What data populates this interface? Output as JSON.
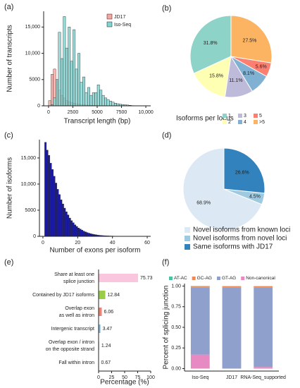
{
  "chart_data": [
    {
      "panel": "(a)",
      "type": "histogram",
      "xlabel": "Transcript length (bp)",
      "ylabel": "Number of transcripts",
      "bins": [
        0,
        250,
        500,
        750,
        1000,
        1250,
        1500,
        1750,
        2000,
        2250,
        2500,
        2750,
        3000,
        3250,
        3500,
        3750,
        4000,
        4250,
        4500,
        4750,
        5000,
        5250,
        5500,
        5750,
        6000,
        6250,
        6500,
        6750,
        7000,
        7250,
        7500,
        7750,
        8000,
        8250,
        8500,
        8750,
        9000,
        9250,
        9500,
        9750,
        10000
      ],
      "series": [
        {
          "name": "JD17",
          "color": "#f4a6a0",
          "values": [
            1000,
            6000,
            7000,
            5000,
            3000,
            2000,
            1500,
            1000,
            800,
            600,
            500,
            400,
            300,
            250,
            200,
            150,
            120,
            100,
            80,
            60,
            50,
            40,
            30,
            20,
            10,
            10,
            5,
            5,
            0,
            0,
            0,
            0,
            0,
            0,
            0,
            0,
            0,
            0,
            0,
            0
          ]
        },
        {
          "name": "Iso-Seq",
          "color": "#7fd3d0",
          "values": [
            0,
            200,
            1500,
            5000,
            14000,
            9000,
            17000,
            11000,
            15000,
            8500,
            14500,
            7000,
            10000,
            4500,
            5500,
            2500,
            3500,
            2000,
            2500,
            2500,
            4000,
            3000,
            2000,
            1500,
            1200,
            900,
            700,
            500,
            400,
            300,
            250,
            200,
            150,
            100,
            50,
            40,
            30,
            20,
            10,
            10
          ]
        }
      ],
      "legend": "upper right",
      "xlim": [
        -500,
        10500
      ],
      "xticks": [
        0,
        2500,
        5000,
        7500,
        {
          "value": 10000,
          "label": "10,000"
        }
      ],
      "ylim": [
        0,
        18000
      ],
      "yticks": [
        0,
        5000,
        {
          "value": 10000,
          "label": "10,000"
        },
        {
          "value": 15000,
          "label": "15,000"
        }
      ]
    },
    {
      "panel": "(b)",
      "type": "pie",
      "legend_title": "Isoforms per locus",
      "categories": [
        "1",
        "2",
        "3",
        "4",
        "5",
        ">5"
      ],
      "values": [
        31.8,
        15.8,
        11.1,
        8.1,
        5.6,
        27.5
      ],
      "value_labels": [
        "31.8%",
        "15.8%",
        "11.1%",
        "8.1%",
        "5.6%",
        "27.5%"
      ],
      "colors": [
        "#8dd3c7",
        "#ffffb3",
        "#bebada",
        "#80b1d3",
        "#fb8072",
        "#fdb462"
      ]
    },
    {
      "panel": "(c)",
      "type": "histogram",
      "xlabel": "Number of exons per isoform",
      "ylabel": "Number of isoforms",
      "bins": [
        1,
        2,
        3,
        4,
        5,
        6,
        7,
        8,
        9,
        10,
        11,
        12,
        13,
        14,
        15,
        16,
        17,
        18,
        19,
        20,
        21,
        22,
        23,
        24,
        25,
        26,
        27,
        28,
        29,
        30,
        31,
        32,
        33,
        34,
        35,
        36,
        37,
        38,
        39,
        40,
        41,
        42,
        43,
        44,
        45,
        46,
        47,
        48,
        49,
        50,
        51,
        52,
        53,
        54,
        55,
        56,
        57,
        58,
        59
      ],
      "values": [
        18000,
        16500,
        15500,
        14000,
        12800,
        11500,
        10200,
        9000,
        8000,
        7000,
        6200,
        5400,
        4700,
        4100,
        3500,
        3000,
        2600,
        2200,
        1900,
        1600,
        1400,
        1200,
        1000,
        850,
        720,
        600,
        500,
        420,
        350,
        300,
        250,
        200,
        170,
        140,
        120,
        100,
        85,
        70,
        60,
        50,
        40,
        35,
        30,
        25,
        20,
        15,
        12,
        10,
        8,
        6,
        5,
        4,
        3,
        2,
        2,
        1,
        1,
        1
      ],
      "color": "#1a1aa6",
      "xlim": [
        -2,
        62
      ],
      "xticks": [
        0,
        20,
        40,
        60
      ],
      "ylim": [
        0,
        18500
      ],
      "yticks": [
        0,
        5000,
        {
          "value": 10000,
          "label": "10,000"
        },
        {
          "value": 15000,
          "label": "15,000"
        }
      ]
    },
    {
      "panel": "(d)",
      "type": "pie",
      "categories": [
        "Novel isoforms from known loci",
        "Novel isoforms from novel loci",
        "Same isoforms with JD17"
      ],
      "values": [
        68.9,
        4.5,
        26.6
      ],
      "value_labels": [
        "68.9%",
        "4.5%",
        "26.6%"
      ],
      "colors": [
        "#dce9f5",
        "#9ecae1",
        "#3182bd"
      ]
    },
    {
      "panel": "(e)",
      "type": "hbar",
      "xlabel": "Percentage (%)",
      "categories": [
        [
          "Share at least one",
          "splice junction"
        ],
        [
          "Contained by JD17 isoforms"
        ],
        [
          "Overlap exon",
          "as well as intron"
        ],
        [
          "Intergenic transcript"
        ],
        [
          "Overlap exon / intron",
          "on the opposite strand"
        ],
        [
          "Fall within intron"
        ]
      ],
      "values": [
        75.73,
        12.84,
        6.06,
        3.47,
        1.24,
        0.67
      ],
      "colors": [
        "#f9c6de",
        "#9acd47",
        "#f08070",
        "#7fb5d9",
        "#c8c8c8",
        "#c8c8c8"
      ],
      "xlim": [
        0,
        100
      ],
      "xticks": [
        0,
        25,
        50,
        75,
        100
      ]
    },
    {
      "panel": "(f)",
      "type": "stacked_bar",
      "ylabel": "Percent of splicing junction",
      "categories": [
        "Iso-Seq",
        "JD17",
        "RNA-Seq_supported"
      ],
      "series": [
        {
          "name": "AT-AC",
          "color": "#4dc0a0",
          "values": [
            0.005,
            0.003,
            0.003
          ]
        },
        {
          "name": "GC-AG",
          "color": "#f08a50",
          "values": [
            0.015,
            0.012,
            0.012
          ]
        },
        {
          "name": "GT-AG",
          "color": "#8fa0cc",
          "values": [
            0.81,
            0.985,
            0.965
          ]
        },
        {
          "name": "Non-canonical",
          "color": "#e78ac3",
          "values": [
            0.17,
            0,
            0.02
          ]
        }
      ],
      "ylim": [
        -0.03,
        1.03
      ],
      "yticks": [
        {
          "value": 0,
          "label": "0.00"
        },
        {
          "value": 0.25,
          "label": "0.25"
        },
        {
          "value": 0.5,
          "label": "0.50"
        },
        {
          "value": 0.75,
          "label": "0.75"
        },
        {
          "value": 1,
          "label": "1.00"
        }
      ]
    }
  ]
}
